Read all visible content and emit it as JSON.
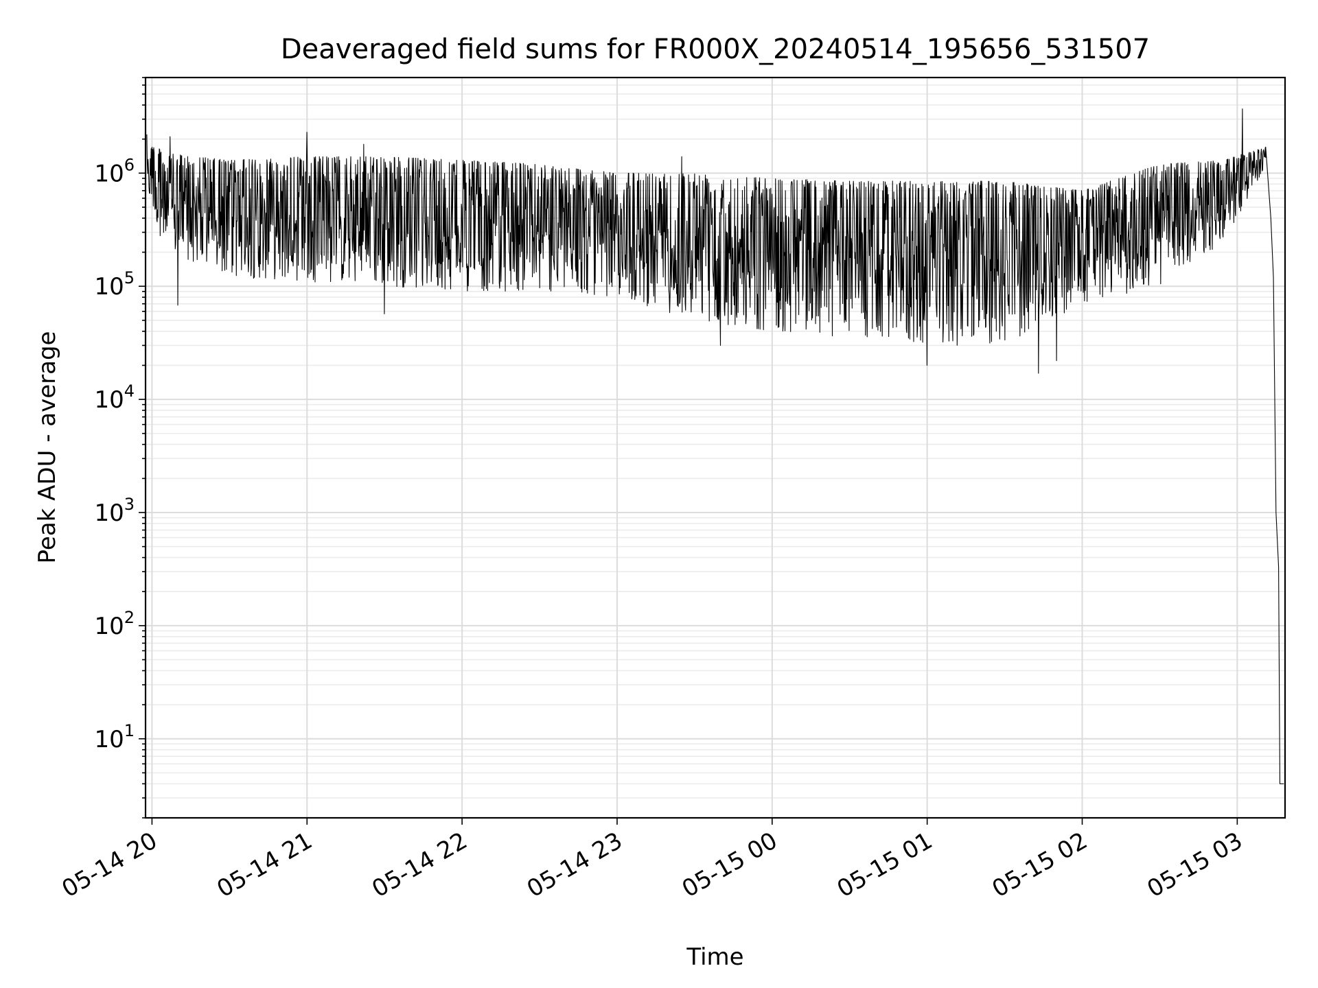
{
  "chart_data": {
    "type": "line",
    "title": "Deaveraged field sums for FR000X_20240514_195656_531507",
    "xlabel": "Time",
    "ylabel": "Peak ADU - average",
    "yscale": "log",
    "ylim": [
      2,
      7000000
    ],
    "xlim": [
      "2024-05-14 19:57:30",
      "2024-05-15 03:18:30"
    ],
    "grid": true,
    "line_color": "#000000",
    "x_ticks": [
      {
        "label": "05-14 20",
        "time": "2024-05-14 20:00"
      },
      {
        "label": "05-14 21",
        "time": "2024-05-14 21:00"
      },
      {
        "label": "05-14 22",
        "time": "2024-05-14 22:00"
      },
      {
        "label": "05-14 23",
        "time": "2024-05-14 23:00"
      },
      {
        "label": "05-15 00",
        "time": "2024-05-15 00:00"
      },
      {
        "label": "05-15 01",
        "time": "2024-05-15 01:00"
      },
      {
        "label": "05-15 02",
        "time": "2024-05-15 02:00"
      },
      {
        "label": "05-15 03",
        "time": "2024-05-15 03:00"
      }
    ],
    "y_ticks": [
      {
        "base": "10",
        "exp": "1",
        "value": 10
      },
      {
        "base": "10",
        "exp": "2",
        "value": 100
      },
      {
        "base": "10",
        "exp": "3",
        "value": 1000
      },
      {
        "base": "10",
        "exp": "4",
        "value": 10000
      },
      {
        "base": "10",
        "exp": "5",
        "value": 100000
      },
      {
        "base": "10",
        "exp": "6",
        "value": 1000000
      }
    ],
    "series": [
      {
        "style": "noisy band between lower and upper envelopes, with distinct spikes",
        "envelope": [
          {
            "time": "2024-05-14 19:58",
            "upper": 2000000,
            "lower": 700000
          },
          {
            "time": "2024-05-14 20:05",
            "upper": 1500000,
            "lower": 200000
          },
          {
            "time": "2024-05-14 20:30",
            "upper": 1300000,
            "lower": 120000
          },
          {
            "time": "2024-05-14 21:00",
            "upper": 1400000,
            "lower": 110000
          },
          {
            "time": "2024-05-14 21:30",
            "upper": 1400000,
            "lower": 100000
          },
          {
            "time": "2024-05-14 22:00",
            "upper": 1300000,
            "lower": 90000
          },
          {
            "time": "2024-05-14 22:30",
            "upper": 1200000,
            "lower": 90000
          },
          {
            "time": "2024-05-14 23:00",
            "upper": 1000000,
            "lower": 80000
          },
          {
            "time": "2024-05-14 23:30",
            "upper": 1000000,
            "lower": 50000
          },
          {
            "time": "2024-05-15 00:00",
            "upper": 900000,
            "lower": 40000
          },
          {
            "time": "2024-05-15 00:30",
            "upper": 850000,
            "lower": 35000
          },
          {
            "time": "2024-05-15 01:00",
            "upper": 850000,
            "lower": 30000
          },
          {
            "time": "2024-05-15 01:30",
            "upper": 850000,
            "lower": 30000
          },
          {
            "time": "2024-05-15 02:00",
            "upper": 700000,
            "lower": 70000
          },
          {
            "time": "2024-05-15 02:30",
            "upper": 1200000,
            "lower": 100000
          },
          {
            "time": "2024-05-15 02:55",
            "upper": 1300000,
            "lower": 250000
          },
          {
            "time": "2024-05-15 03:03",
            "upper": 1500000,
            "lower": 500000
          },
          {
            "time": "2024-05-15 03:11",
            "upper": 1700000,
            "lower": 1200000
          }
        ],
        "spikes": [
          {
            "time": "2024-05-14 19:58",
            "value": 2200000
          },
          {
            "time": "2024-05-14 20:07",
            "value": 2100000
          },
          {
            "time": "2024-05-14 21:00",
            "value": 2300000
          },
          {
            "time": "2024-05-14 21:22",
            "value": 1800000
          },
          {
            "time": "2024-05-14 23:25",
            "value": 1400000
          },
          {
            "time": "2024-05-15 03:02",
            "value": 3700000
          },
          {
            "time": "2024-05-14 20:10",
            "value": 68000
          },
          {
            "time": "2024-05-14 21:30",
            "value": 57000
          },
          {
            "time": "2024-05-14 23:40",
            "value": 30000
          },
          {
            "time": "2024-05-15 01:00",
            "value": 20000
          },
          {
            "time": "2024-05-15 01:43",
            "value": 17000
          },
          {
            "time": "2024-05-15 01:50",
            "value": 22000
          }
        ],
        "tail": [
          {
            "time": "2024-05-15 03:11",
            "value": 1700000
          },
          {
            "time": "2024-05-15 03:13",
            "value": 400000
          },
          {
            "time": "2024-05-15 03:14",
            "value": 120000
          },
          {
            "time": "2024-05-15 03:15",
            "value": 1000
          },
          {
            "time": "2024-05-15 03:16",
            "value": 330
          },
          {
            "time": "2024-05-15 03:16:30",
            "value": 4
          },
          {
            "time": "2024-05-15 03:17",
            "value": 4
          },
          {
            "time": "2024-05-15 03:17:30",
            "value": 4
          },
          {
            "time": "2024-05-15 03:18",
            "value": 4
          }
        ]
      }
    ]
  }
}
